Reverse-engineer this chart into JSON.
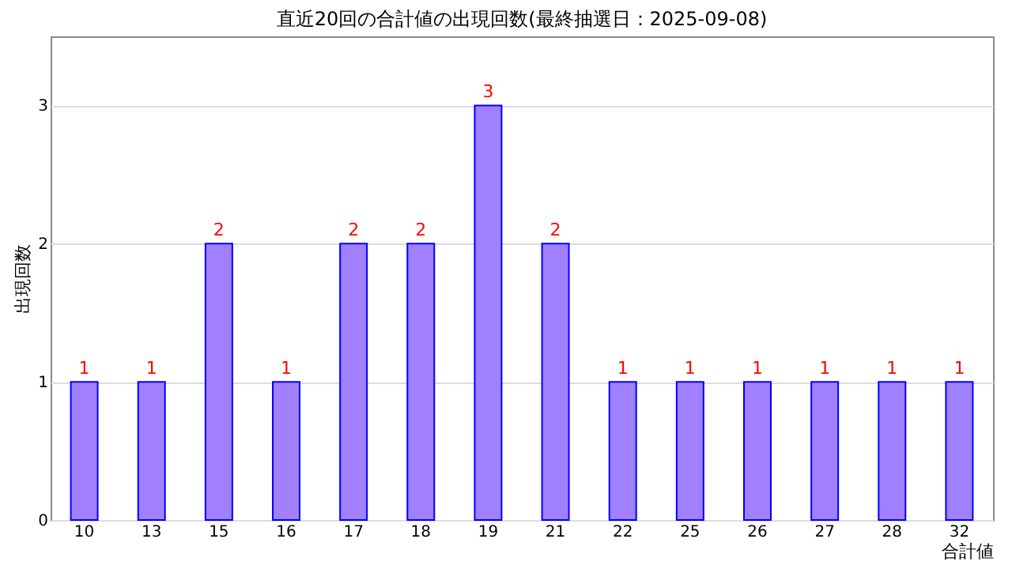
{
  "chart_data": {
    "type": "bar",
    "title": "直近20回の合計値の出現回数(最終抽選日：2025-09-08)",
    "xlabel": "合計値",
    "ylabel": "出現回数",
    "categories": [
      "10",
      "13",
      "15",
      "16",
      "17",
      "18",
      "19",
      "21",
      "22",
      "25",
      "26",
      "27",
      "28",
      "32"
    ],
    "values": [
      1,
      1,
      2,
      1,
      2,
      2,
      3,
      2,
      1,
      1,
      1,
      1,
      1,
      1
    ],
    "color": "#a080ff",
    "ylim": [
      0,
      3.5
    ],
    "yticks": [
      0,
      1,
      2,
      3
    ],
    "grid": "y",
    "data_labels": true
  }
}
